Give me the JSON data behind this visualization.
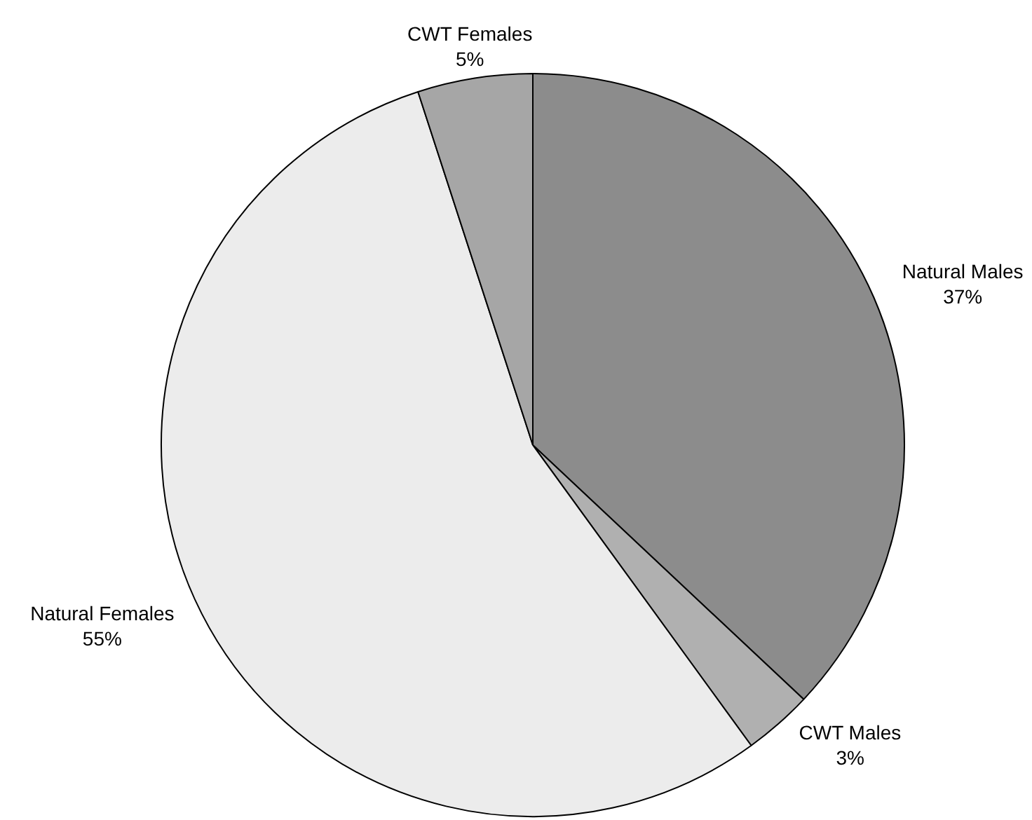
{
  "chart_data": {
    "type": "pie",
    "categories": [
      "Natural Males",
      "CWT Males",
      "Natural Females",
      "CWT Females"
    ],
    "values": [
      37,
      3,
      55,
      5
    ],
    "value_labels": [
      "37%",
      "3%",
      "55%",
      "5%"
    ],
    "colors": [
      "#8c8c8c",
      "#b0b0b0",
      "#ececec",
      "#a6a6a6"
    ],
    "legend": false
  }
}
